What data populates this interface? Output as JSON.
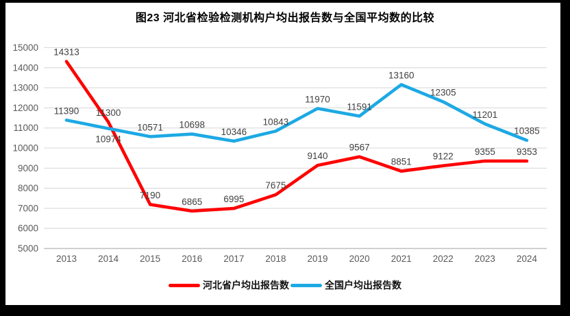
{
  "chart_data": {
    "type": "line",
    "title": "图23  河北省检验检测机构户均出报告数与全国平均数的比较",
    "categories": [
      "2013",
      "2014",
      "2015",
      "2016",
      "2017",
      "2018",
      "2019",
      "2020",
      "2021",
      "2022",
      "2023",
      "2024"
    ],
    "series": [
      {
        "key": "hebei",
        "name": "河北省户均出报告数",
        "color": "#FE0000",
        "values": [
          14313,
          11300,
          7190,
          6865,
          6995,
          7675,
          9140,
          9567,
          8851,
          9122,
          9355,
          9353
        ],
        "label_below_indices": []
      },
      {
        "key": "national",
        "name": "全国户均出报告数",
        "color": "#1CA9E4",
        "values": [
          11390,
          10974,
          10571,
          10698,
          10346,
          10843,
          11970,
          11591,
          13160,
          12305,
          11201,
          10385
        ],
        "label_below_indices": [
          1
        ]
      }
    ],
    "ylim": [
      5000,
      15000
    ],
    "ytick_step": 1000,
    "yticks": [
      5000,
      6000,
      7000,
      8000,
      9000,
      10000,
      11000,
      12000,
      13000,
      14000,
      15000
    ],
    "grid": true,
    "data_labels": true,
    "legend_position": "bottom",
    "styles": {
      "gridline_color": "#D9D9D9",
      "axis_line_color": "#BFBFBF",
      "tick_label_color": "#595959",
      "data_label_color": "#404040",
      "frame_border_color": "#000000",
      "background_color": "#FFFFFF"
    }
  }
}
